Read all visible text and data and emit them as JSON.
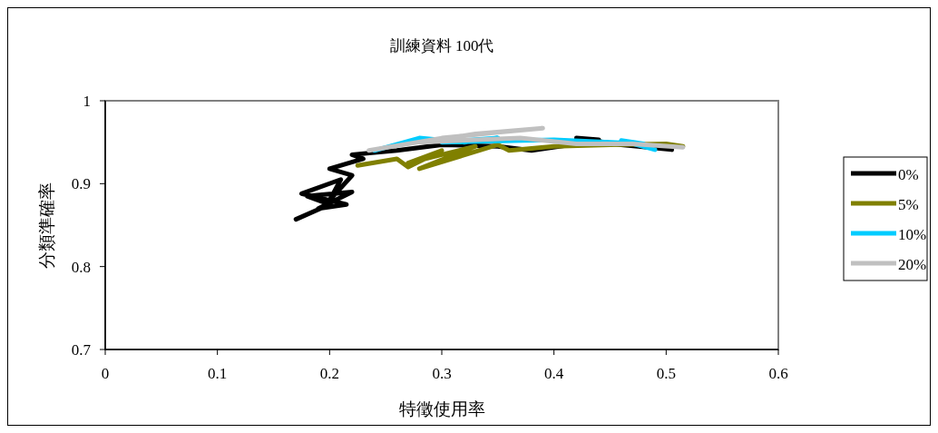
{
  "chart_data": {
    "type": "line",
    "title": "訓練資料 100代",
    "xlabel": "特徵使用率",
    "ylabel": "分類準確率",
    "xlim": [
      0,
      0.6
    ],
    "xticks": [
      0,
      0.1,
      0.2,
      0.3,
      0.4,
      0.5,
      0.6
    ],
    "ylim": [
      0.7,
      1
    ],
    "yticks": [
      0.7,
      0.8,
      0.9,
      1
    ],
    "grid": false,
    "legend": "right",
    "marker": "none",
    "line_style": "solid",
    "series": [
      {
        "name": "0%",
        "color": "#000000",
        "x": [
          0.17,
          0.2,
          0.18,
          0.22,
          0.19,
          0.215,
          0.175,
          0.21,
          0.2,
          0.22,
          0.2,
          0.23,
          0.22,
          0.26,
          0.3,
          0.35,
          0.38,
          0.42,
          0.44,
          0.42,
          0.46,
          0.505
        ],
        "values": [
          0.857,
          0.875,
          0.885,
          0.89,
          0.87,
          0.875,
          0.888,
          0.905,
          0.88,
          0.91,
          0.918,
          0.93,
          0.935,
          0.94,
          0.947,
          0.945,
          0.94,
          0.948,
          0.953,
          0.955,
          0.947,
          0.941
        ]
      },
      {
        "name": "5%",
        "color": "#808000",
        "x": [
          0.225,
          0.26,
          0.27,
          0.3,
          0.27,
          0.33,
          0.28,
          0.35,
          0.36,
          0.4,
          0.45,
          0.5,
          0.515
        ],
        "values": [
          0.922,
          0.93,
          0.92,
          0.94,
          0.925,
          0.945,
          0.918,
          0.947,
          0.94,
          0.945,
          0.947,
          0.948,
          0.945
        ]
      },
      {
        "name": "10%",
        "color": "#00ccff",
        "x": [
          0.24,
          0.28,
          0.32,
          0.35,
          0.3,
          0.4,
          0.45,
          0.48,
          0.46,
          0.49
        ],
        "values": [
          0.94,
          0.955,
          0.95,
          0.955,
          0.95,
          0.953,
          0.95,
          0.948,
          0.952,
          0.941
        ]
      },
      {
        "name": "20%",
        "color": "#c0c0c0",
        "x": [
          0.235,
          0.3,
          0.35,
          0.39,
          0.33,
          0.28,
          0.37,
          0.42,
          0.47,
          0.515
        ],
        "values": [
          0.94,
          0.955,
          0.962,
          0.967,
          0.96,
          0.95,
          0.955,
          0.948,
          0.948,
          0.944
        ]
      }
    ]
  }
}
